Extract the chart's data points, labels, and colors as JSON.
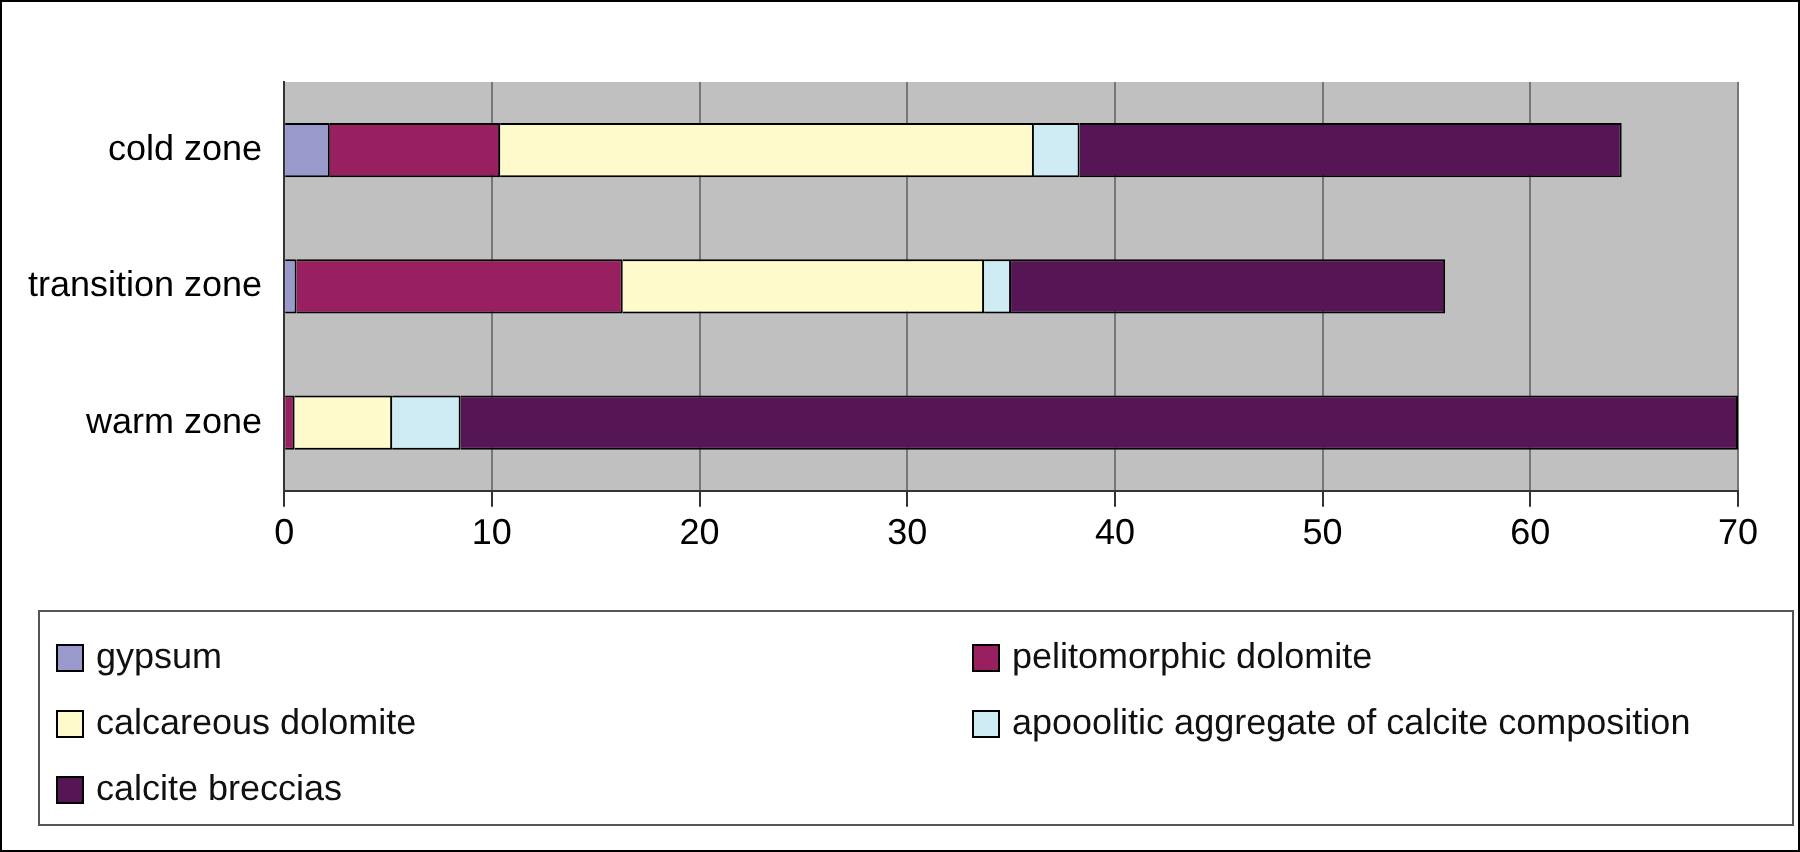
{
  "chart_data": {
    "type": "bar",
    "orientation": "horizontal",
    "stacked": true,
    "categories": [
      "cold zone",
      "transition zone",
      "warm zone"
    ],
    "series": [
      {
        "name": "gypsum",
        "color": "#9999cc",
        "values": [
          2.2,
          0.6,
          0
        ]
      },
      {
        "name": "pelitomorphic dolomite",
        "color": "#992060",
        "values": [
          8.2,
          15.7,
          0.5
        ]
      },
      {
        "name": "calcareous dolomite",
        "color": "#fffacc",
        "values": [
          25.7,
          17.4,
          4.7
        ]
      },
      {
        "name": "apooolitic aggregate of calcite composition",
        "color": "#cfecf5",
        "values": [
          2.2,
          1.3,
          3.3
        ]
      },
      {
        "name": "calcite breccias",
        "color": "#561655",
        "values": [
          26.1,
          20.9,
          61.5
        ]
      }
    ],
    "xlim": [
      0,
      70
    ],
    "xticks": [
      0,
      10,
      20,
      30,
      40,
      50,
      60,
      70
    ],
    "grid": "x",
    "legend": "bottom"
  }
}
